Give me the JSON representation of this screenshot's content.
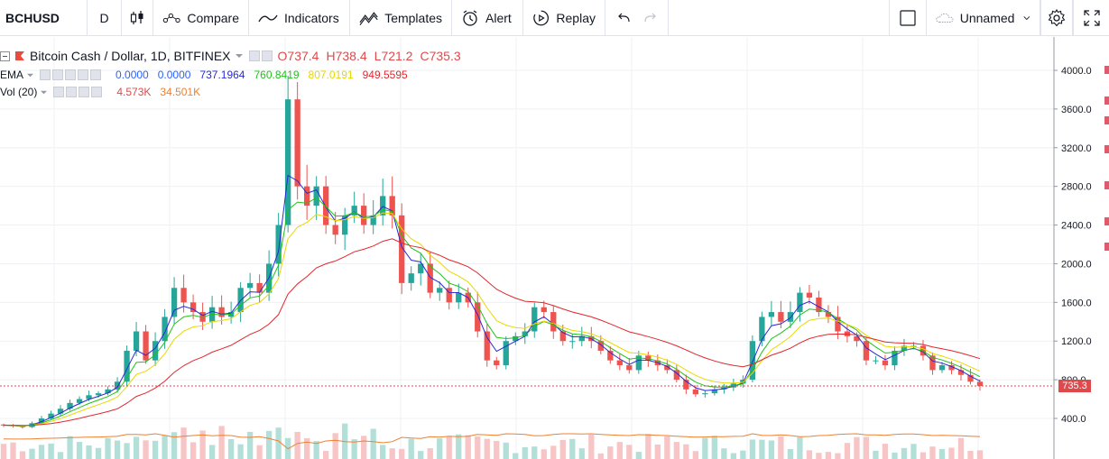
{
  "toolbar": {
    "symbol": "BCHUSD",
    "interval": "D",
    "compare_label": "Compare",
    "indicators_label": "Indicators",
    "templates_label": "Templates",
    "alert_label": "Alert",
    "replay_label": "Replay",
    "layout_name": "Unnamed"
  },
  "legend": {
    "title": "Bitcoin Cash / Dollar, 1D, BITFINEX",
    "open_label": "O",
    "open": "737.4",
    "high_label": "H",
    "high": "738.4",
    "low_label": "L",
    "low": "721.2",
    "close_label": "C",
    "close": "735.3",
    "ema_label": "EMA",
    "ema_values": [
      "0.0000",
      "0.0000",
      "737.1964",
      "760.8419",
      "807.0191",
      "949.5595"
    ],
    "ema_colors": [
      "#2962ff",
      "#2962ff",
      "#2a2ad4",
      "#21c21a",
      "#e8d800",
      "#e0282d"
    ],
    "vol_label": "Vol (20)",
    "vol_values": [
      "4.573K",
      "34.501K"
    ],
    "vol_colors": [
      "#e0494b",
      "#f08030"
    ]
  },
  "price_axis": {
    "ticks": [
      "4000.0",
      "3600.0",
      "3200.0",
      "2800.0",
      "2400.0",
      "2000.0",
      "1600.0",
      "1200.0",
      "800.0",
      "400.0"
    ],
    "last_price": "735.3"
  },
  "colors": {
    "up": "#26a69a",
    "down": "#ef5350",
    "ema_fast": "#2a2ad4",
    "ema_mid": "#21c21a",
    "ema_slow": "#e8d800",
    "ema_long": "#e0282d",
    "grid": "#eef0f3"
  },
  "chart_data": {
    "type": "candlestick",
    "ylim": [
      200,
      4200
    ],
    "price_axis_ticks": [
      4000,
      3600,
      3200,
      2800,
      2400,
      2000,
      1600,
      1200,
      800,
      400
    ],
    "closes": [
      330,
      320,
      310,
      350,
      400,
      450,
      500,
      560,
      600,
      640,
      660,
      700,
      780,
      1100,
      1300,
      1000,
      1200,
      1450,
      1750,
      1600,
      1500,
      1400,
      1550,
      1450,
      1500,
      1750,
      1800,
      1700,
      2000,
      2400,
      3700,
      2800,
      2600,
      2800,
      2400,
      2300,
      2500,
      2600,
      2400,
      2500,
      2700,
      2500,
      1800,
      1900,
      2000,
      1700,
      1750,
      1600,
      1700,
      1600,
      1300,
      1000,
      950,
      1200,
      1250,
      1300,
      1550,
      1500,
      1300,
      1200,
      1200,
      1250,
      1200,
      1100,
      1000,
      950,
      900,
      1050,
      1000,
      950,
      900,
      800,
      700,
      650,
      660,
      700,
      720,
      760,
      800,
      1200,
      1450,
      1500,
      1400,
      1500,
      1700,
      1650,
      1500,
      1450,
      1300,
      1250,
      1200,
      1000,
      1000,
      950,
      1100,
      1150,
      1150,
      1050,
      900,
      950,
      900,
      850,
      780,
      735
    ]
  }
}
